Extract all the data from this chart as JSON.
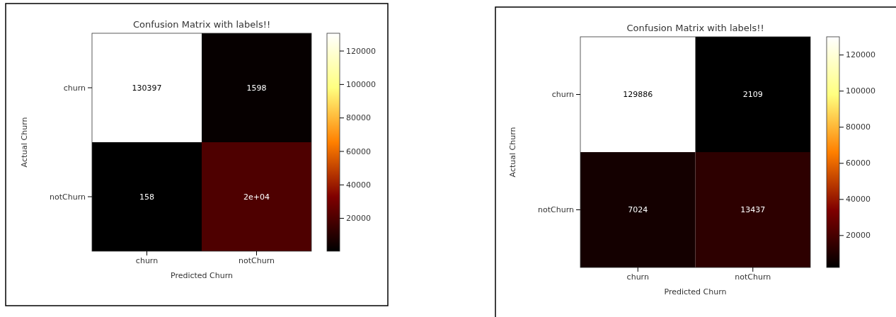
{
  "chart_data": [
    {
      "type": "heatmap",
      "title": "Confusion Matrix with labels!!",
      "xlabel": "Predicted Churn",
      "ylabel": "Actual Churn",
      "categories": [
        "churn",
        "notChurn"
      ],
      "y_categories": [
        "churn",
        "notChurn"
      ],
      "cells": [
        [
          130397,
          1598
        ],
        [
          158,
          20000
        ]
      ],
      "cell_labels": [
        [
          "130397",
          "1598"
        ],
        [
          "158",
          "2e+04"
        ]
      ],
      "clim": [
        158,
        130397
      ],
      "cticks": [
        20000,
        40000,
        60000,
        80000,
        100000,
        120000
      ]
    },
    {
      "type": "heatmap",
      "title": "Confusion Matrix with labels!!",
      "xlabel": "Predicted Churn",
      "ylabel": "Actual Churn",
      "categories": [
        "churn",
        "notChurn"
      ],
      "y_categories": [
        "churn",
        "notChurn"
      ],
      "cells": [
        [
          129886,
          2109
        ],
        [
          7024,
          13437
        ]
      ],
      "data_labels": true,
      "clim": [
        2109,
        129886
      ],
      "cticks": [
        20000,
        40000,
        60000,
        80000,
        100000,
        120000
      ]
    }
  ]
}
